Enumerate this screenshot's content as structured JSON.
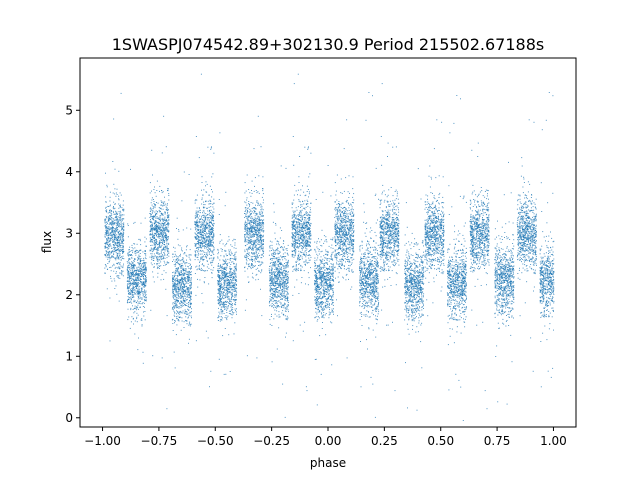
{
  "chart_data": {
    "type": "scatter",
    "title": "1SWASPJ074542.89+302130.9 Period 215502.67188s",
    "xlabel": "phase",
    "ylabel": "flux",
    "xlim": [
      -1.1,
      1.1
    ],
    "ylim": [
      -0.15,
      5.85
    ],
    "grid": false,
    "legend": "none",
    "point_color": "#1f77b4",
    "x_ticks": [
      -1.0,
      -0.75,
      -0.5,
      -0.25,
      0.0,
      0.25,
      0.5,
      0.75,
      1.0
    ],
    "x_tick_labels": [
      "−1.00",
      "−0.75",
      "−0.50",
      "−0.25",
      "0.00",
      "0.25",
      "0.50",
      "0.75",
      "1.00"
    ],
    "y_ticks": [
      0,
      1,
      2,
      3,
      4,
      5
    ],
    "y_tick_labels": [
      "0",
      "1",
      "2",
      "3",
      "4",
      "5"
    ],
    "series": [
      {
        "clusters": [
          {
            "x": -0.95,
            "y": 2.95
          },
          {
            "x": -0.85,
            "y": 2.25
          },
          {
            "x": -0.75,
            "y": 3.0
          },
          {
            "x": -0.65,
            "y": 2.15
          },
          {
            "x": -0.55,
            "y": 3.0
          },
          {
            "x": -0.45,
            "y": 2.2
          },
          {
            "x": -0.33,
            "y": 3.0
          },
          {
            "x": -0.22,
            "y": 2.25
          },
          {
            "x": -0.12,
            "y": 3.0
          },
          {
            "x": -0.02,
            "y": 2.2
          },
          {
            "x": 0.07,
            "y": 3.0
          },
          {
            "x": 0.18,
            "y": 2.25
          },
          {
            "x": 0.27,
            "y": 3.0
          },
          {
            "x": 0.38,
            "y": 2.15
          },
          {
            "x": 0.47,
            "y": 3.0
          },
          {
            "x": 0.57,
            "y": 2.2
          },
          {
            "x": 0.67,
            "y": 3.0
          },
          {
            "x": 0.78,
            "y": 2.25
          },
          {
            "x": 0.88,
            "y": 3.0
          },
          {
            "x": 0.98,
            "y": 2.25
          }
        ]
      }
    ]
  }
}
